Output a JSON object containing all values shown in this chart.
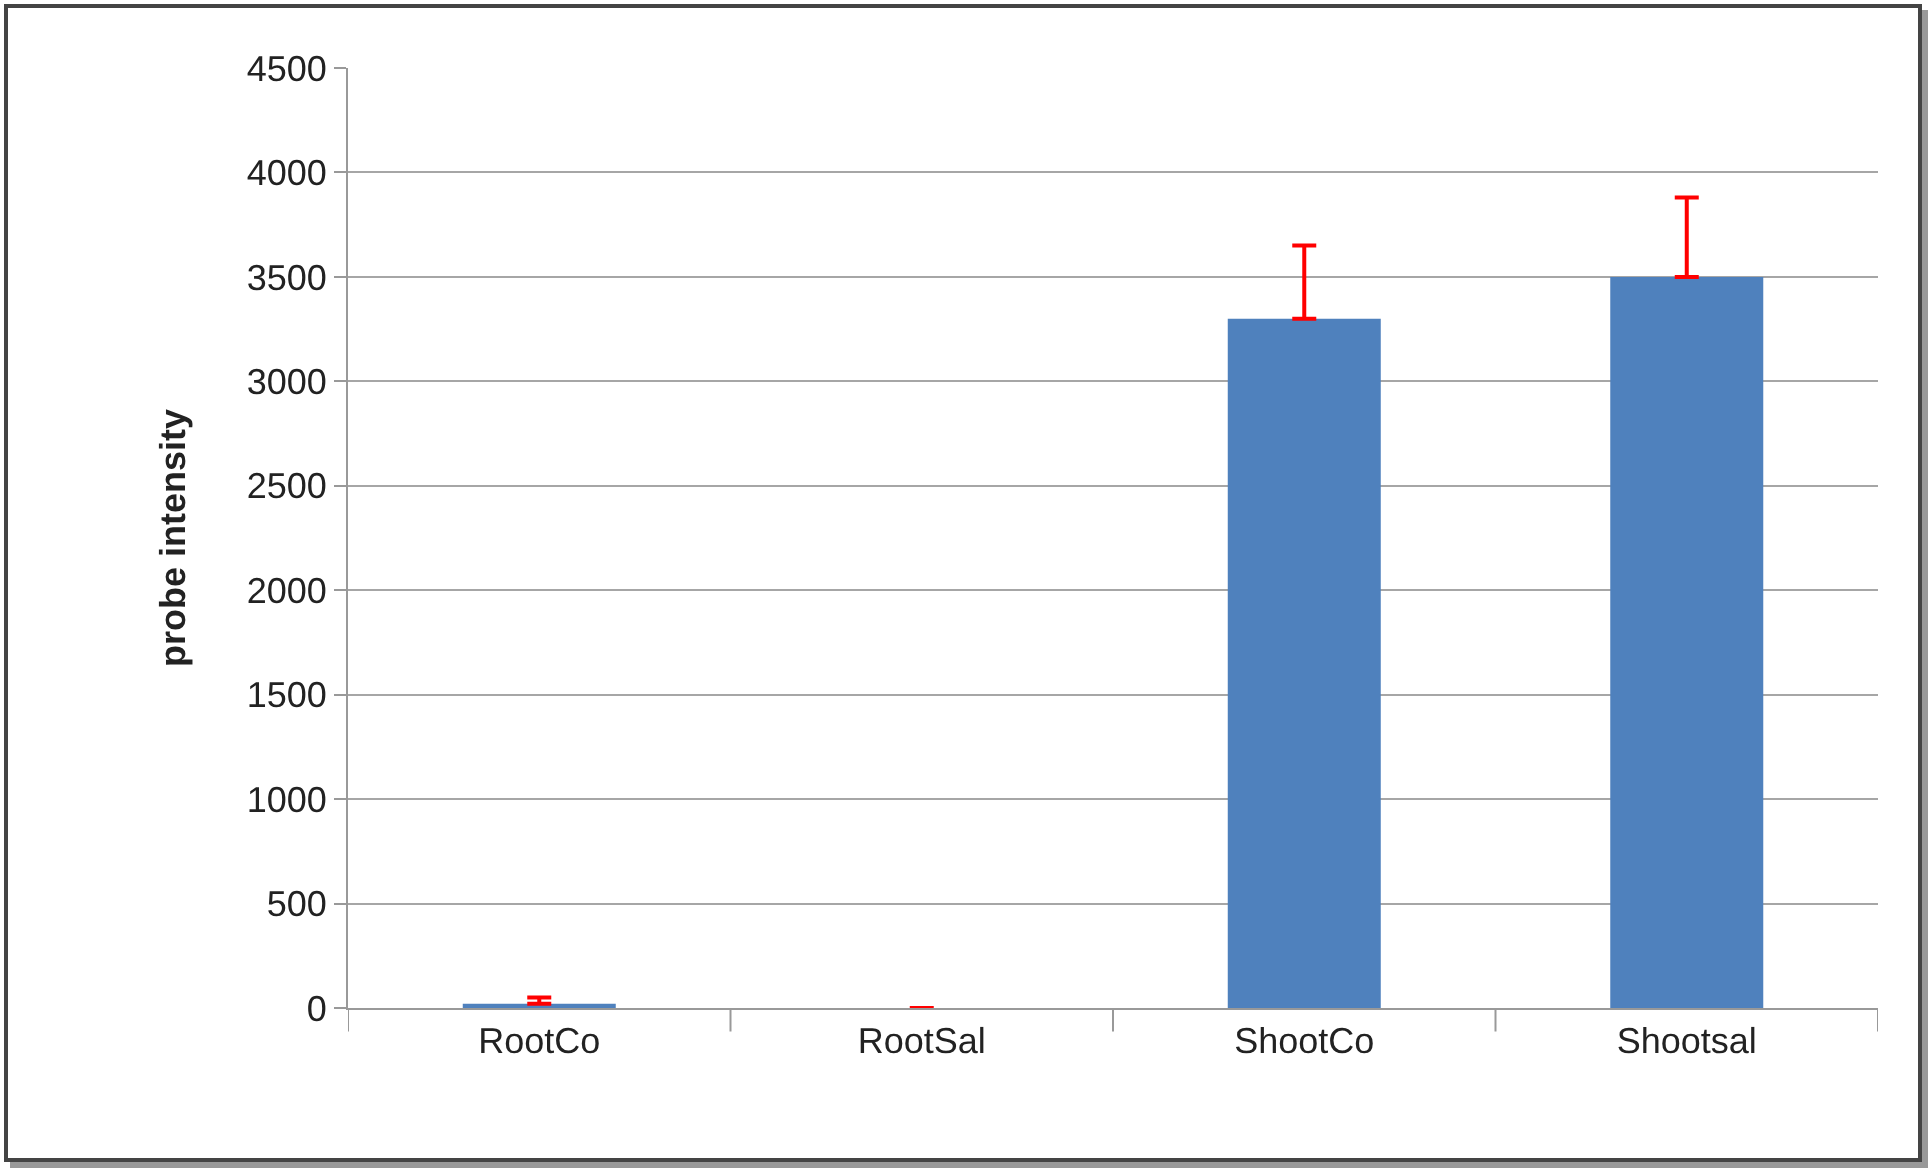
{
  "chart_data": {
    "type": "bar",
    "ylabel": "probe intensity",
    "categories": [
      "RootCo",
      "RootSal",
      "ShootCo",
      "Shootsal"
    ],
    "values": [
      20,
      0,
      3300,
      3500
    ],
    "errors": [
      [
        20,
        50
      ],
      null,
      [
        3300,
        3650
      ],
      [
        3500,
        3880
      ]
    ],
    "color": "#4f81bd",
    "ylim": [
      0,
      4500
    ],
    "yticks": [
      0,
      500,
      1000,
      1500,
      2000,
      2500,
      3000,
      3500,
      4000,
      4500
    ],
    "grid": "y"
  }
}
